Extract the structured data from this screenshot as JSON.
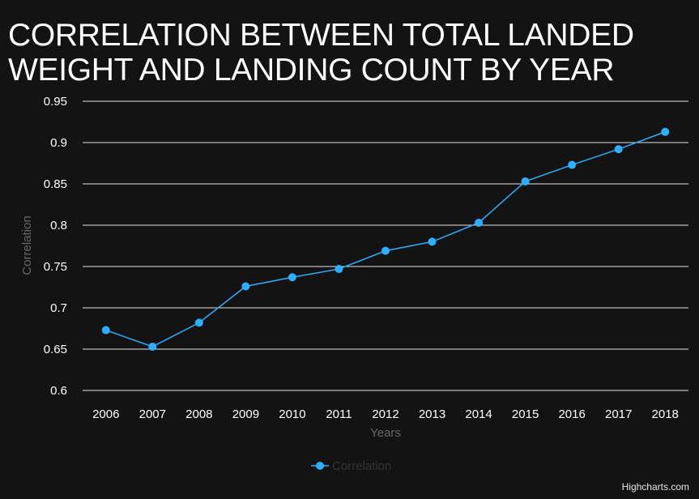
{
  "chart_data": {
    "type": "line",
    "title": "CORRELATION BETWEEN TOTAL LANDED WEIGHT AND LANDING COUNT BY YEAR",
    "xlabel": "Years",
    "ylabel": "Correlation",
    "categories": [
      "2006",
      "2007",
      "2008",
      "2009",
      "2010",
      "2011",
      "2012",
      "2013",
      "2014",
      "2015",
      "2016",
      "2017",
      "2018"
    ],
    "series": [
      {
        "name": "Correlation",
        "color": "#2caffe",
        "values": [
          0.673,
          0.653,
          0.682,
          0.726,
          0.737,
          0.747,
          0.769,
          0.78,
          0.803,
          0.853,
          0.873,
          0.892,
          0.913
        ]
      }
    ],
    "ylim": [
      0.6,
      0.95
    ],
    "yticks": [
      "0.6",
      "0.65",
      "0.7",
      "0.75",
      "0.8",
      "0.85",
      "0.9",
      "0.95"
    ],
    "grid": true,
    "legend": "bottom-center"
  },
  "credit": "Highcharts.com",
  "colors": {
    "background": "#131313",
    "grid": "#e6e6e6",
    "series": "#2caffe",
    "axis_title": "#666666",
    "legend_text": "#333333"
  }
}
